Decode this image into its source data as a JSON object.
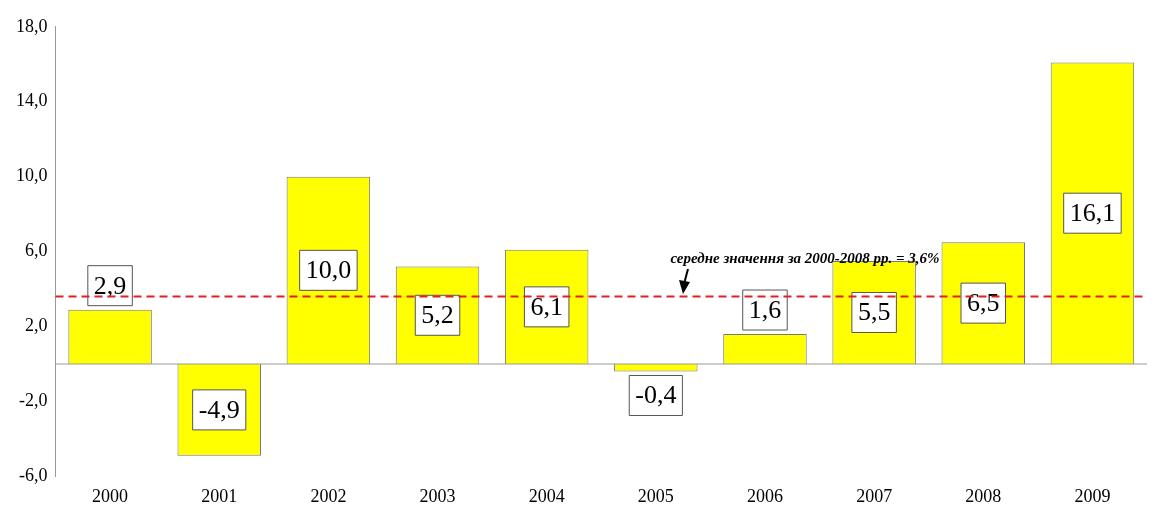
{
  "chart_data": {
    "type": "bar",
    "categories": [
      "2000",
      "2001",
      "2002",
      "2003",
      "2004",
      "2005",
      "2006",
      "2007",
      "2008",
      "2009"
    ],
    "values": [
      2.9,
      -4.9,
      10.0,
      5.2,
      6.1,
      -0.4,
      1.6,
      5.5,
      6.5,
      16.1
    ],
    "value_labels": [
      "2,9",
      "-4,9",
      "10,0",
      "5,2",
      "6,1",
      "-0,4",
      "1,6",
      "5,5",
      "6,5",
      "16,1"
    ],
    "color": "#ffff00",
    "ylim": [
      -6,
      18
    ],
    "yticks": [
      {
        "value": -6,
        "label": "-6,0"
      },
      {
        "value": -2,
        "label": "-2,0"
      },
      {
        "value": 2,
        "label": "2,0"
      },
      {
        "value": 6,
        "label": "6,0"
      },
      {
        "value": 10,
        "label": "10,0"
      },
      {
        "value": 14,
        "label": "14,0"
      },
      {
        "value": 18,
        "label": "18,0"
      }
    ],
    "ref_lines": [
      {
        "axis": "y",
        "value": 3.6,
        "label": "середне значення за 2000-2008 рр. = 3,6%",
        "color": "#e02020",
        "line_style": "dashed"
      }
    ],
    "grid": false,
    "legend": false
  }
}
